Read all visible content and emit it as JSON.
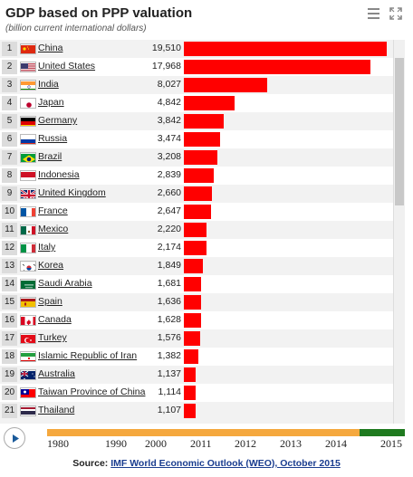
{
  "header": {
    "title": "GDP based on PPP valuation",
    "subtitle": "(billion current international dollars)"
  },
  "controls": {
    "menu_icon": "hamburger-menu-icon",
    "expand_icon": "fullscreen-expand-icon",
    "play_icon": "play-icon"
  },
  "chart_data": {
    "type": "bar",
    "orientation": "horizontal",
    "title": "GDP based on PPP valuation",
    "subtitle": "(billion current international dollars)",
    "bar_color": "#ff0000",
    "categories": [
      "China",
      "United States",
      "India",
      "Japan",
      "Germany",
      "Russia",
      "Brazil",
      "Indonesia",
      "United Kingdom",
      "France",
      "Mexico",
      "Italy",
      "Korea",
      "Saudi Arabia",
      "Spain",
      "Canada",
      "Turkey",
      "Islamic Republic of Iran",
      "Australia",
      "Taiwan Province of China",
      "Thailand"
    ],
    "ranks": [
      "1",
      "2",
      "3",
      "4",
      "5",
      "6",
      "7",
      "8",
      "9",
      "10",
      "11",
      "12",
      "13",
      "14",
      "15",
      "16",
      "17",
      "18",
      "19",
      "20",
      "21"
    ],
    "labels": [
      "19,510",
      "17,968",
      "8,027",
      "4,842",
      "3,842",
      "3,474",
      "3,208",
      "2,839",
      "2,660",
      "2,647",
      "2,220",
      "2,174",
      "1,849",
      "1,681",
      "1,636",
      "1,628",
      "1,576",
      "1,382",
      "1,137",
      "1,114",
      "1,107"
    ],
    "values": [
      19510,
      17968,
      8027,
      4842,
      3842,
      3474,
      3208,
      2839,
      2660,
      2647,
      2220,
      2174,
      1849,
      1681,
      1636,
      1628,
      1576,
      1382,
      1137,
      1114,
      1107
    ],
    "flags": [
      "cn",
      "us",
      "in",
      "jp",
      "de",
      "ru",
      "br",
      "id",
      "gb",
      "fr",
      "mx",
      "it",
      "kr",
      "sa",
      "es",
      "ca",
      "tr",
      "ir",
      "au",
      "tw",
      "th"
    ]
  },
  "timeline": {
    "years": [
      "1980",
      "1990",
      "2000",
      "2011",
      "2012",
      "2013",
      "2014",
      "2015"
    ],
    "selected_year": "2015",
    "progress": 0.87,
    "track_color": "#f5a83e",
    "progress_color": "#1f7a1f"
  },
  "footer": {
    "source_label": "Source:",
    "source_link": "IMF World Economic Outlook (WEO), October 2015"
  }
}
